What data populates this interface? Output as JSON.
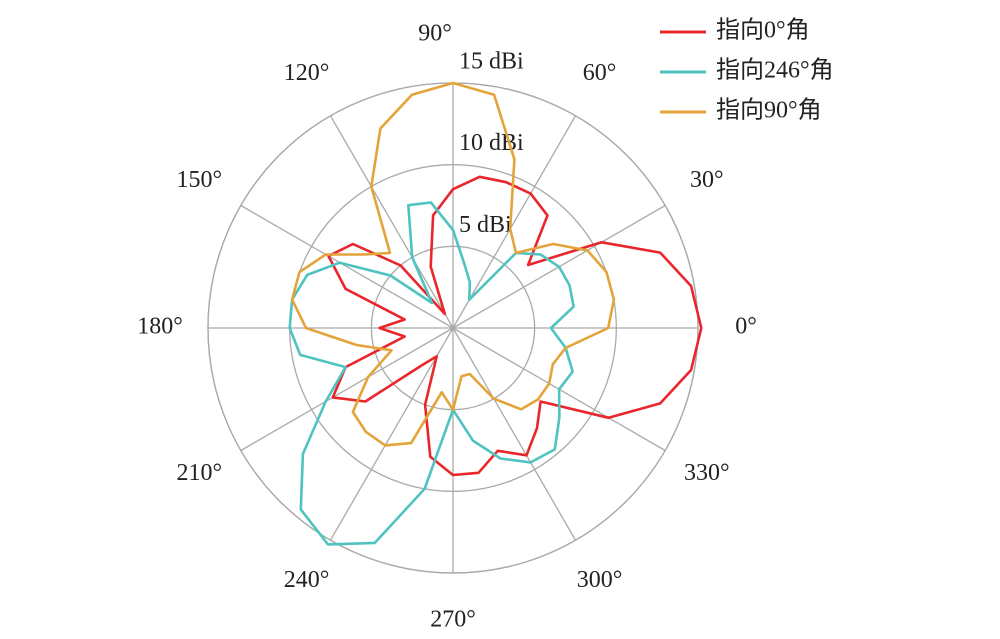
{
  "chart_data": {
    "type": "polar",
    "theta": [
      0,
      10,
      20,
      30,
      40,
      50,
      60,
      70,
      80,
      90,
      100,
      110,
      120,
      130,
      140,
      150,
      160,
      170,
      180,
      190,
      200,
      210,
      220,
      230,
      240,
      250,
      260,
      270,
      280,
      290,
      300,
      310,
      320,
      330,
      340,
      350
    ],
    "series": [
      {
        "name": "指向0°角",
        "color": "#e8262b",
        "values": [
          15.2,
          14.8,
          13.5,
          10.5,
          6,
          9,
          9.5,
          9.5,
          9.4,
          8.5,
          7,
          4,
          1,
          5,
          8,
          8.8,
          7,
          3,
          4.5,
          3,
          7,
          8.5,
          7,
          3,
          2,
          5,
          8,
          9,
          9,
          8,
          9,
          8,
          7,
          11,
          13.5,
          14.8
        ]
      },
      {
        "name": "指向246°角",
        "color": "#4fc3c0",
        "values": [
          6,
          7.5,
          7.6,
          7.5,
          7,
          6,
          2,
          3,
          4,
          6,
          7.8,
          8,
          5,
          2,
          5,
          8,
          9.5,
          10,
          10,
          9.5,
          7,
          9,
          12,
          14.5,
          15.3,
          14,
          10,
          5,
          7,
          8.5,
          9.5,
          9.7,
          8.5,
          7.5,
          7.8,
          7
        ]
      },
      {
        "name": "指向90°角",
        "color": "#e3a43a",
        "values": [
          9.5,
          10,
          10,
          9.5,
          8,
          6,
          7,
          11,
          14.5,
          15,
          14.5,
          13,
          10,
          6,
          7,
          9,
          10,
          10,
          9,
          6,
          4,
          6,
          8,
          8.3,
          8.3,
          7.5,
          4,
          5,
          3,
          3,
          5,
          6.5,
          6.8,
          6.8,
          6.5,
          7
        ]
      }
    ],
    "rlim": [
      0,
      15
    ],
    "rticks": [
      {
        "value": 5,
        "label": "5 dBi"
      },
      {
        "value": 10,
        "label": "10 dBi"
      },
      {
        "value": 15,
        "label": "15 dBi"
      }
    ],
    "thetaticks": [
      {
        "value": 0,
        "label": "0°"
      },
      {
        "value": 30,
        "label": "30°"
      },
      {
        "value": 60,
        "label": "60°"
      },
      {
        "value": 90,
        "label": "90°"
      },
      {
        "value": 120,
        "label": "120°"
      },
      {
        "value": 150,
        "label": "150°"
      },
      {
        "value": 180,
        "label": "180°"
      },
      {
        "value": 210,
        "label": "210°"
      },
      {
        "value": 240,
        "label": "240°"
      },
      {
        "value": 270,
        "label": "270°"
      },
      {
        "value": 300,
        "label": "300°"
      },
      {
        "value": 330,
        "label": "330°"
      }
    ],
    "grid": true,
    "legend": "upper right"
  }
}
